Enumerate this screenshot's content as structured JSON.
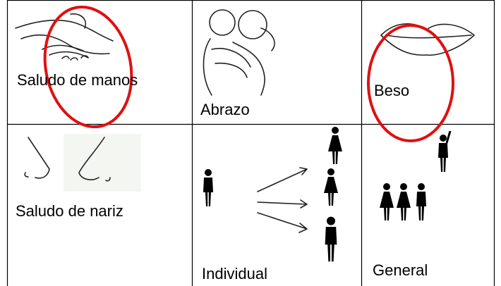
{
  "table": {
    "rows": [
      [
        "Saludo de manos",
        "Abrazo",
        "Beso"
      ],
      [
        "Saludo de nariz",
        "Individual",
        "General"
      ]
    ]
  }
}
